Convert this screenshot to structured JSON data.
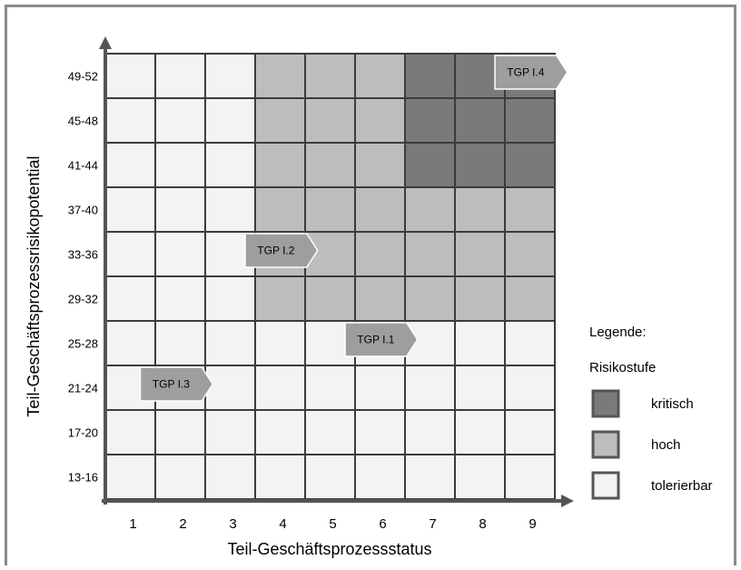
{
  "chart_data": {
    "type": "heatmap",
    "xlabel": "Teil-Geschäftsprozessstatus",
    "ylabel": "Teil-Geschäftsprozessrisikopotential",
    "x_categories": [
      "1",
      "2",
      "3",
      "4",
      "5",
      "6",
      "7",
      "8",
      "9"
    ],
    "y_categories": [
      "13-16",
      "17-20",
      "21-24",
      "25-28",
      "29-32",
      "33-36",
      "37-40",
      "41-44",
      "45-48",
      "49-52"
    ],
    "risk_matrix_top_to_bottom": [
      [
        "tolerierbar",
        "tolerierbar",
        "tolerierbar",
        "hoch",
        "hoch",
        "hoch",
        "kritisch",
        "kritisch",
        "kritisch"
      ],
      [
        "tolerierbar",
        "tolerierbar",
        "tolerierbar",
        "hoch",
        "hoch",
        "hoch",
        "kritisch",
        "kritisch",
        "kritisch"
      ],
      [
        "tolerierbar",
        "tolerierbar",
        "tolerierbar",
        "hoch",
        "hoch",
        "hoch",
        "kritisch",
        "kritisch",
        "kritisch"
      ],
      [
        "tolerierbar",
        "tolerierbar",
        "tolerierbar",
        "hoch",
        "hoch",
        "hoch",
        "hoch",
        "hoch",
        "hoch"
      ],
      [
        "tolerierbar",
        "tolerierbar",
        "tolerierbar",
        "hoch",
        "hoch",
        "hoch",
        "hoch",
        "hoch",
        "hoch"
      ],
      [
        "tolerierbar",
        "tolerierbar",
        "tolerierbar",
        "hoch",
        "hoch",
        "hoch",
        "hoch",
        "hoch",
        "hoch"
      ],
      [
        "tolerierbar",
        "tolerierbar",
        "tolerierbar",
        "tolerierbar",
        "tolerierbar",
        "tolerierbar",
        "tolerierbar",
        "tolerierbar",
        "tolerierbar"
      ],
      [
        "tolerierbar",
        "tolerierbar",
        "tolerierbar",
        "tolerierbar",
        "tolerierbar",
        "tolerierbar",
        "tolerierbar",
        "tolerierbar",
        "tolerierbar"
      ],
      [
        "tolerierbar",
        "tolerierbar",
        "tolerierbar",
        "tolerierbar",
        "tolerierbar",
        "tolerierbar",
        "tolerierbar",
        "tolerierbar",
        "tolerierbar"
      ],
      [
        "tolerierbar",
        "tolerierbar",
        "tolerierbar",
        "tolerierbar",
        "tolerierbar",
        "tolerierbar",
        "tolerierbar",
        "tolerierbar",
        "tolerierbar"
      ]
    ],
    "processes": [
      {
        "label": "TGP I.4",
        "x_start": 8.8,
        "x_end": 10.25,
        "y": "49-52"
      },
      {
        "label": "TGP I.2",
        "x_start": 3.8,
        "x_end": 5.25,
        "y": "33-36"
      },
      {
        "label": "TGP I.1",
        "x_start": 5.8,
        "x_end": 7.25,
        "y": "25-28"
      },
      {
        "label": "TGP I.3",
        "x_start": 1.7,
        "x_end": 3.15,
        "y": "21-24"
      }
    ],
    "legend": {
      "title": "Legende:",
      "subtitle": "Risikostufe",
      "entries": [
        {
          "key": "kritisch",
          "label": "kritisch",
          "color": "#7a7a7a"
        },
        {
          "key": "hoch",
          "label": "hoch",
          "color": "#bdbdbd"
        },
        {
          "key": "tolerierbar",
          "label": "tolerierbar",
          "color": "#f3f3f3"
        }
      ]
    },
    "process_color": "#9e9e9e",
    "grid_line_color": "#3c3c3c",
    "frame_color": "#8a8a8a"
  }
}
